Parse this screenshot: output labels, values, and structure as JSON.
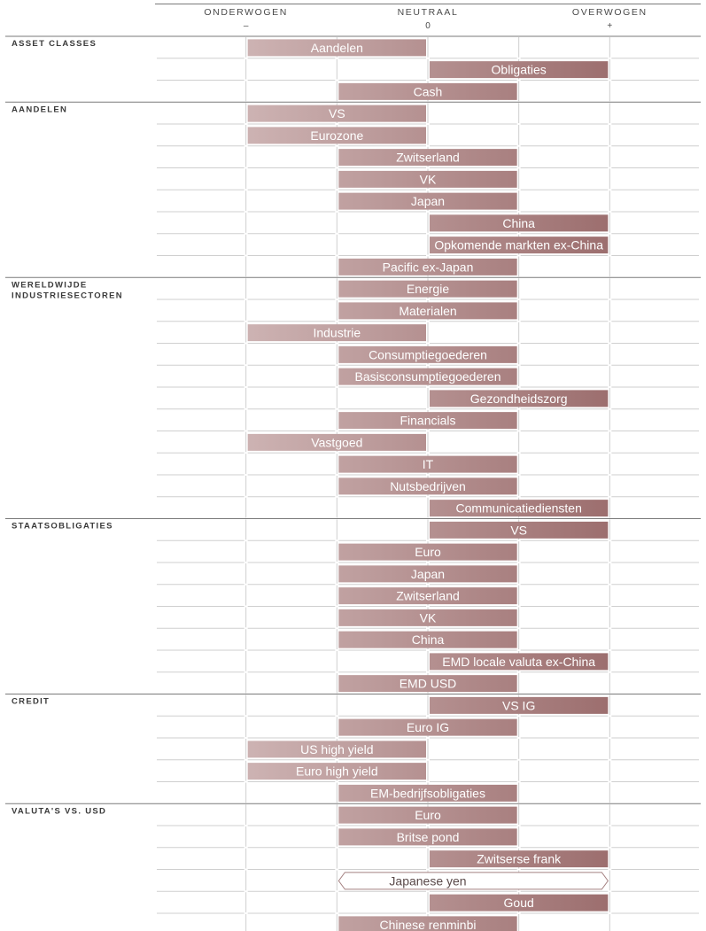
{
  "chart_data": {
    "type": "bar",
    "header": {
      "columns": [
        {
          "label": "ONDERWOGEN",
          "symbol": "–"
        },
        {
          "label": "NEUTRAAL",
          "symbol": "0"
        },
        {
          "label": "OVERWOGEN",
          "symbol": "+"
        }
      ]
    },
    "scale_levels": [
      -2,
      -1,
      0,
      1,
      2
    ],
    "groups": [
      {
        "name": "ASSET CLASSES",
        "items": [
          {
            "label": "Aandelen",
            "from": -1,
            "to": 0
          },
          {
            "label": "Obligaties",
            "from": 0,
            "to": 1
          },
          {
            "label": "Cash",
            "from": -0.5,
            "to": 0.5
          }
        ]
      },
      {
        "name": "AANDELEN",
        "items": [
          {
            "label": "VS",
            "from": -1,
            "to": 0
          },
          {
            "label": "Eurozone",
            "from": -1,
            "to": 0
          },
          {
            "label": "Zwitserland",
            "from": -0.5,
            "to": 0.5
          },
          {
            "label": "VK",
            "from": -0.5,
            "to": 0.5
          },
          {
            "label": "Japan",
            "from": -0.5,
            "to": 0.5
          },
          {
            "label": "China",
            "from": 0,
            "to": 1
          },
          {
            "label": "Opkomende markten ex-China",
            "from": 0,
            "to": 1
          },
          {
            "label": "Pacific ex-Japan",
            "from": -0.5,
            "to": 0.5
          }
        ]
      },
      {
        "name": "WERELDWIJDE INDUSTRIESECTOREN",
        "items": [
          {
            "label": "Energie",
            "from": -0.5,
            "to": 0.5
          },
          {
            "label": "Materialen",
            "from": -0.5,
            "to": 0.5
          },
          {
            "label": "Industrie",
            "from": -1,
            "to": 0
          },
          {
            "label": "Consumptiegoederen",
            "from": -0.5,
            "to": 0.5
          },
          {
            "label": "Basisconsumptiegoederen",
            "from": -0.5,
            "to": 0.5
          },
          {
            "label": "Gezondheidszorg",
            "from": 0,
            "to": 1
          },
          {
            "label": "Financials",
            "from": -0.5,
            "to": 0.5
          },
          {
            "label": "Vastgoed",
            "from": -1,
            "to": 0
          },
          {
            "label": "IT",
            "from": -0.5,
            "to": 0.5
          },
          {
            "label": "Nutsbedrijven",
            "from": -0.5,
            "to": 0.5
          },
          {
            "label": "Communicatiediensten",
            "from": 0,
            "to": 1
          }
        ]
      },
      {
        "name": "STAATSOBLIGATIES",
        "items": [
          {
            "label": "VS",
            "from": 0,
            "to": 1
          },
          {
            "label": "Euro",
            "from": -0.5,
            "to": 0.5
          },
          {
            "label": "Japan",
            "from": -0.5,
            "to": 0.5
          },
          {
            "label": "Zwitserland",
            "from": -0.5,
            "to": 0.5
          },
          {
            "label": "VK",
            "from": -0.5,
            "to": 0.5
          },
          {
            "label": "China",
            "from": -0.5,
            "to": 0.5
          },
          {
            "label": "EMD locale valuta ex-China",
            "from": 0,
            "to": 1
          },
          {
            "label": "EMD USD",
            "from": -0.5,
            "to": 0.5
          }
        ]
      },
      {
        "name": "CREDIT",
        "items": [
          {
            "label": "VS IG",
            "from": 0,
            "to": 1
          },
          {
            "label": "Euro IG",
            "from": -0.5,
            "to": 0.5
          },
          {
            "label": "US high yield",
            "from": -1,
            "to": 0
          },
          {
            "label": "Euro high yield",
            "from": -1,
            "to": 0
          },
          {
            "label": "EM-bedrijfsobligaties",
            "from": -0.5,
            "to": 0.5
          }
        ]
      },
      {
        "name": "VALUTA'S VS. USD",
        "items": [
          {
            "label": "Euro",
            "from": -0.5,
            "to": 0.5
          },
          {
            "label": "Britse pond",
            "from": -0.5,
            "to": 0.5
          },
          {
            "label": "Zwitserse frank",
            "from": 0,
            "to": 1
          },
          {
            "label": "Japanese yen",
            "from": -0.5,
            "to": 1,
            "style": "outline"
          },
          {
            "label": "Goud",
            "from": 0,
            "to": 1
          },
          {
            "label": "Chinese renminbi",
            "from": -0.5,
            "to": 0.5
          }
        ]
      }
    ],
    "colors": {
      "bar_light": "#cdb3b3",
      "bar_dark": "#9c6e6e",
      "grid": "#cfcfcf",
      "group_rule": "#7a7a7a",
      "outline": "#a48080"
    }
  }
}
